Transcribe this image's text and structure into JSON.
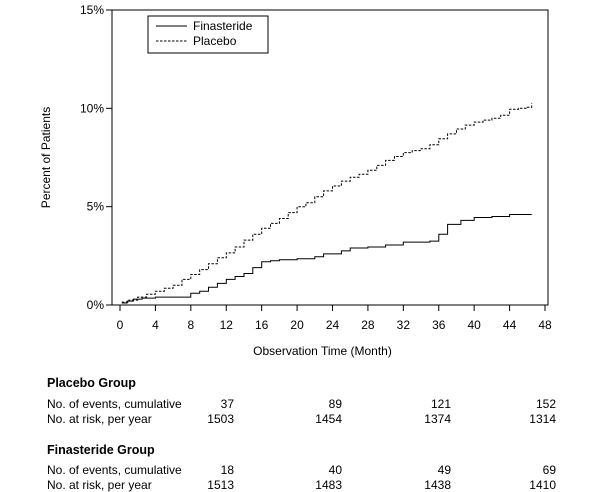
{
  "chart_data": {
    "type": "line",
    "xlabel": "Observation Time (Month)",
    "ylabel": "Percent of Patients",
    "xlim": [
      0,
      48
    ],
    "ylim": [
      0,
      15
    ],
    "x_ticks": [
      0,
      4,
      8,
      12,
      16,
      20,
      24,
      28,
      32,
      36,
      40,
      44,
      48
    ],
    "y_ticks": [
      0,
      5,
      10,
      15
    ],
    "y_tick_labels": [
      "0%",
      "5%",
      "10%",
      "15%"
    ],
    "grid": false,
    "legend_position": "top-left",
    "series": [
      {
        "name": "Finasteride",
        "style": "solid",
        "color": "#000000",
        "points": [
          [
            0.2,
            0.1
          ],
          [
            0.8,
            0.2
          ],
          [
            1.5,
            0.3
          ],
          [
            2.5,
            0.35
          ],
          [
            4,
            0.4
          ],
          [
            6,
            0.4
          ],
          [
            7.8,
            0.4
          ],
          [
            8,
            0.6
          ],
          [
            9,
            0.7
          ],
          [
            10,
            0.9
          ],
          [
            11,
            1.1
          ],
          [
            12,
            1.3
          ],
          [
            13,
            1.45
          ],
          [
            14,
            1.6
          ],
          [
            15,
            1.9
          ],
          [
            16,
            2.2
          ],
          [
            17,
            2.25
          ],
          [
            18,
            2.3
          ],
          [
            20,
            2.35
          ],
          [
            22,
            2.45
          ],
          [
            23,
            2.6
          ],
          [
            25,
            2.75
          ],
          [
            26,
            2.9
          ],
          [
            28,
            2.95
          ],
          [
            30,
            3.05
          ],
          [
            32,
            3.2
          ],
          [
            35,
            3.25
          ],
          [
            36,
            3.6
          ],
          [
            37,
            4.1
          ],
          [
            38.5,
            4.3
          ],
          [
            40,
            4.45
          ],
          [
            42,
            4.5
          ],
          [
            44,
            4.6
          ],
          [
            46.5,
            4.6
          ]
        ]
      },
      {
        "name": "Placebo",
        "style": "dashed",
        "color": "#000000",
        "points": [
          [
            0.2,
            0.15
          ],
          [
            1,
            0.25
          ],
          [
            2,
            0.4
          ],
          [
            3,
            0.55
          ],
          [
            4,
            0.7
          ],
          [
            5,
            0.85
          ],
          [
            6,
            1.0
          ],
          [
            7,
            1.3
          ],
          [
            8,
            1.55
          ],
          [
            9,
            1.8
          ],
          [
            10,
            2.1
          ],
          [
            11,
            2.4
          ],
          [
            12,
            2.65
          ],
          [
            13,
            2.95
          ],
          [
            14,
            3.3
          ],
          [
            15,
            3.6
          ],
          [
            16,
            3.9
          ],
          [
            17,
            4.15
          ],
          [
            18,
            4.4
          ],
          [
            19,
            4.7
          ],
          [
            20,
            5.0
          ],
          [
            21,
            5.2
          ],
          [
            22,
            5.5
          ],
          [
            23,
            5.8
          ],
          [
            24,
            6.05
          ],
          [
            25,
            6.3
          ],
          [
            26,
            6.5
          ],
          [
            27,
            6.65
          ],
          [
            28,
            6.85
          ],
          [
            29,
            7.1
          ],
          [
            30,
            7.35
          ],
          [
            31,
            7.55
          ],
          [
            32,
            7.75
          ],
          [
            33,
            7.85
          ],
          [
            34,
            7.95
          ],
          [
            35,
            8.15
          ],
          [
            36,
            8.45
          ],
          [
            37,
            8.7
          ],
          [
            38,
            8.95
          ],
          [
            39,
            9.15
          ],
          [
            40,
            9.3
          ],
          [
            41,
            9.4
          ],
          [
            42,
            9.5
          ],
          [
            43,
            9.65
          ],
          [
            44,
            9.95
          ],
          [
            45,
            10.0
          ],
          [
            46,
            10.05
          ],
          [
            46.5,
            10.25
          ]
        ]
      }
    ]
  },
  "table": {
    "groups": [
      {
        "title": "Placebo Group",
        "rows": [
          {
            "label": "No. of events, cumulative",
            "values": [
              "37",
              "89",
              "121",
              "152"
            ]
          },
          {
            "label": "No. at risk, per year",
            "values": [
              "1503",
              "1454",
              "1374",
              "1314"
            ]
          }
        ]
      },
      {
        "title": "Finasteride Group",
        "rows": [
          {
            "label": "No. of events, cumulative",
            "values": [
              "18",
              "40",
              "49",
              "69"
            ]
          },
          {
            "label": "No. at risk, per year",
            "values": [
              "1513",
              "1483",
              "1438",
              "1410"
            ]
          }
        ]
      }
    ]
  }
}
